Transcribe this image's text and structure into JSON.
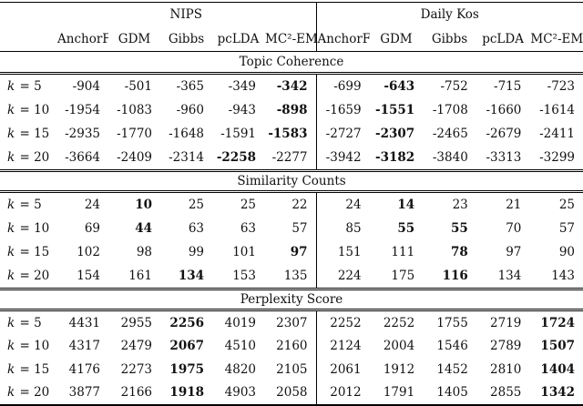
{
  "table": {
    "groups": [
      {
        "label": "NIPS"
      },
      {
        "label": "Daily Kos"
      }
    ],
    "column_headers": [
      "AnchorF",
      "GDM",
      "Gibbs",
      "pcLDA",
      "MC²-EM"
    ],
    "row_label_symbol": "k",
    "sections": [
      {
        "title": "Topic Coherence",
        "rows": [
          {
            "k": "5",
            "values": [
              "-904",
              "-501",
              "-365",
              "-349",
              "-342",
              "-699",
              "-643",
              "-752",
              "-715",
              "-723"
            ],
            "bold": [
              4,
              6
            ]
          },
          {
            "k": "10",
            "values": [
              "-1954",
              "-1083",
              "-960",
              "-943",
              "-898",
              "-1659",
              "-1551",
              "-1708",
              "-1660",
              "-1614"
            ],
            "bold": [
              4,
              6
            ]
          },
          {
            "k": "15",
            "values": [
              "-2935",
              "-1770",
              "-1648",
              "-1591",
              "-1583",
              "-2727",
              "-2307",
              "-2465",
              "-2679",
              "-2411"
            ],
            "bold": [
              4,
              6
            ]
          },
          {
            "k": "20",
            "values": [
              "-3664",
              "-2409",
              "-2314",
              "-2258",
              "-2277",
              "-3942",
              "-3182",
              "-3840",
              "-3313",
              "-3299"
            ],
            "bold": [
              3,
              6
            ]
          }
        ]
      },
      {
        "title": "Similarity Counts",
        "rows": [
          {
            "k": "5",
            "values": [
              "24",
              "10",
              "25",
              "25",
              "22",
              "24",
              "14",
              "23",
              "21",
              "25"
            ],
            "bold": [
              1,
              6
            ]
          },
          {
            "k": "10",
            "values": [
              "69",
              "44",
              "63",
              "63",
              "57",
              "85",
              "55",
              "55",
              "70",
              "57"
            ],
            "bold": [
              1,
              6,
              7
            ]
          },
          {
            "k": "15",
            "values": [
              "102",
              "98",
              "99",
              "101",
              "97",
              "151",
              "111",
              "78",
              "97",
              "90"
            ],
            "bold": [
              4,
              7
            ]
          },
          {
            "k": "20",
            "values": [
              "154",
              "161",
              "134",
              "153",
              "135",
              "224",
              "175",
              "116",
              "134",
              "143"
            ],
            "bold": [
              2,
              7
            ]
          }
        ]
      },
      {
        "title": "Perplexity Score",
        "rows": [
          {
            "k": "5",
            "values": [
              "4431",
              "2955",
              "2256",
              "4019",
              "2307",
              "2252",
              "2252",
              "1755",
              "2719",
              "1724"
            ],
            "bold": [
              2,
              9
            ]
          },
          {
            "k": "10",
            "values": [
              "4317",
              "2479",
              "2067",
              "4510",
              "2160",
              "2124",
              "2004",
              "1546",
              "2789",
              "1507"
            ],
            "bold": [
              2,
              9
            ]
          },
          {
            "k": "15",
            "values": [
              "4176",
              "2273",
              "1975",
              "4820",
              "2105",
              "2061",
              "1912",
              "1452",
              "2810",
              "1404"
            ],
            "bold": [
              2,
              9
            ]
          },
          {
            "k": "20",
            "values": [
              "3877",
              "2166",
              "1918",
              "4903",
              "2058",
              "2012",
              "1791",
              "1405",
              "2855",
              "1342"
            ],
            "bold": [
              2,
              9
            ]
          }
        ]
      }
    ]
  }
}
